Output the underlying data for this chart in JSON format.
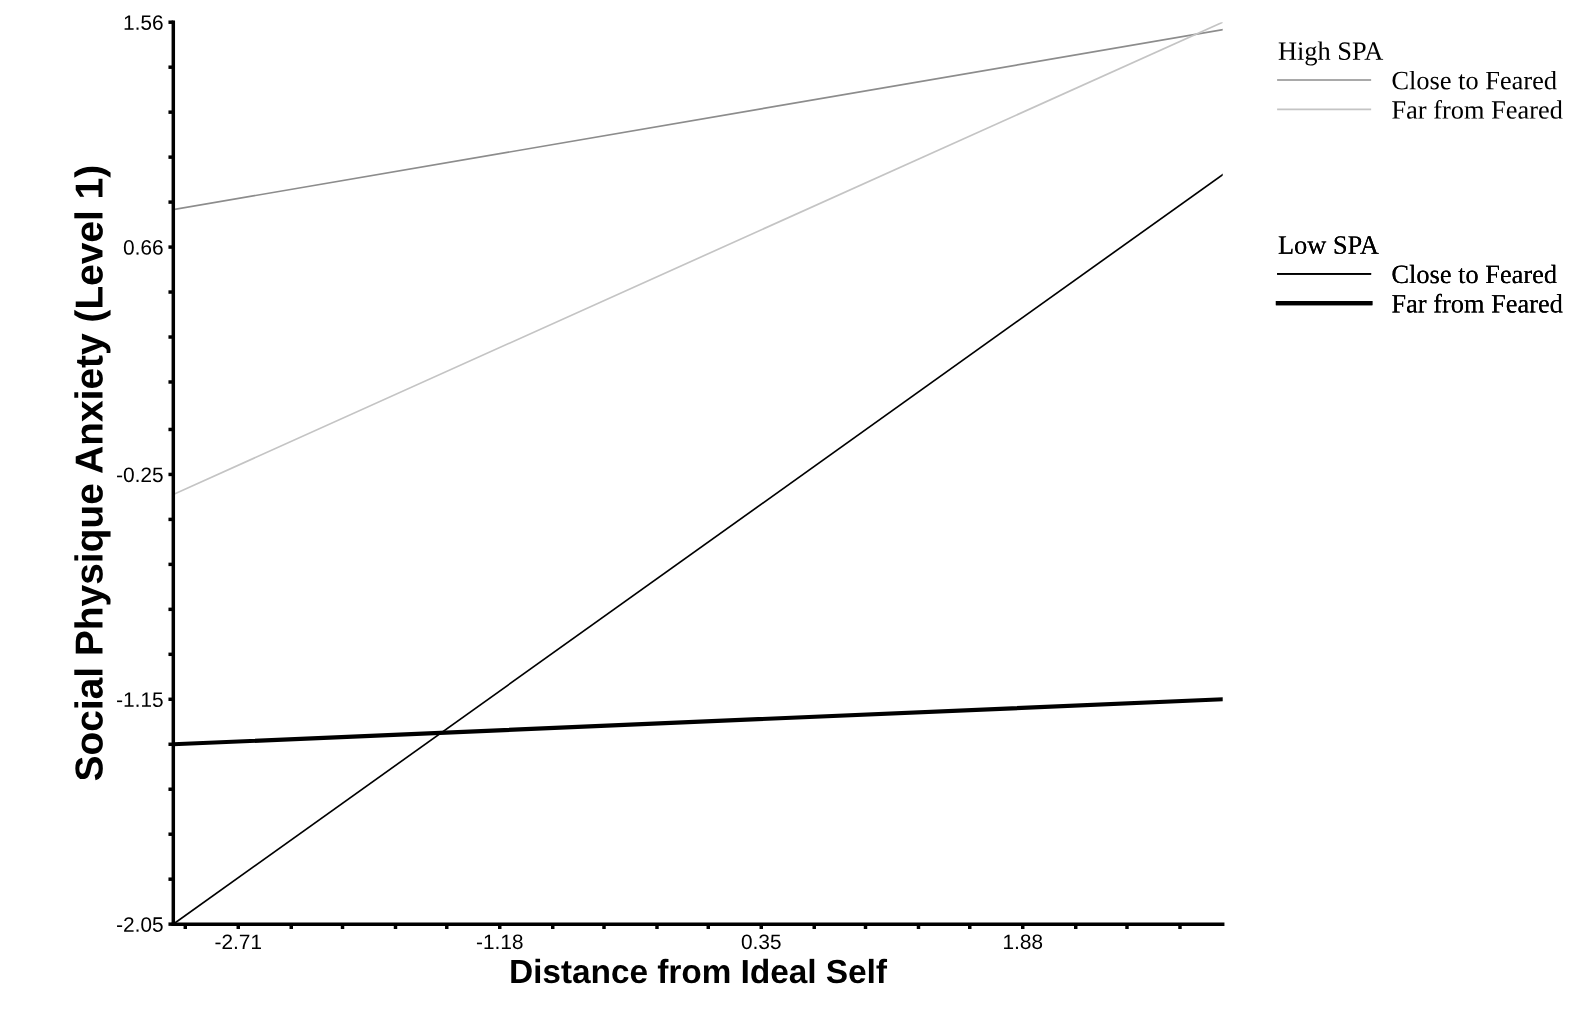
{
  "chart_data": {
    "type": "line",
    "xlabel": "Distance from Ideal Self",
    "ylabel": "Social Physique Anxiety (Level 1)",
    "x": [
      -3.09,
      3.05
    ],
    "series": [
      {
        "name": "Close to Feared",
        "color": "#8c8c8c",
        "values": [
          0.81,
          1.53
        ]
      },
      {
        "name": "Far from Feared",
        "color": "#c4c4c4",
        "values": [
          -0.33,
          1.56
        ]
      },
      {
        "name": "Close to Feared",
        "color": "#000000",
        "values": [
          -2.05,
          0.95
        ]
      },
      {
        "name": "Far from Feared",
        "color": "#000000",
        "values": [
          -1.33,
          -1.15
        ]
      }
    ],
    "annotations": [
      "High SPA",
      "Low SPA"
    ],
    "xlim": [
      -3.09,
      3.05
    ],
    "ylim": [
      -2.05,
      1.56
    ],
    "xticks": [
      {
        "value": -3.02,
        "label": null
      },
      -2.71,
      {
        "value": -2.4,
        "label": null
      },
      {
        "value": -2.1,
        "label": null
      },
      {
        "value": -1.79,
        "label": null
      },
      {
        "value": -1.49,
        "label": null
      },
      -1.18,
      {
        "value": -0.87,
        "label": null
      },
      {
        "value": -0.57,
        "label": null
      },
      {
        "value": -0.26,
        "label": null
      },
      {
        "value": 0.04,
        "label": null
      },
      0.35,
      {
        "value": 0.66,
        "label": null
      },
      {
        "value": 0.96,
        "label": null
      },
      {
        "value": 1.27,
        "label": null
      },
      {
        "value": 1.57,
        "label": null
      },
      1.88,
      {
        "value": 2.19,
        "label": null
      },
      {
        "value": 2.49,
        "label": null
      },
      {
        "value": 2.8,
        "label": null
      }
    ],
    "yticks": [
      -2.05,
      {
        "value": -1.87,
        "label": null
      },
      {
        "value": -1.69,
        "label": null
      },
      {
        "value": -1.51,
        "label": null
      },
      {
        "value": -1.33,
        "label": null
      },
      -1.15,
      {
        "value": -0.97,
        "label": null
      },
      {
        "value": -0.79,
        "label": null
      },
      {
        "value": -0.61,
        "label": null
      },
      {
        "value": -0.43,
        "label": null
      },
      -0.25,
      {
        "value": -0.07,
        "label": null
      },
      {
        "value": 0.12,
        "label": null
      },
      {
        "value": 0.3,
        "label": null
      },
      {
        "value": 0.48,
        "label": null
      },
      0.66,
      {
        "value": 0.84,
        "label": null
      },
      {
        "value": 1.02,
        "label": null
      },
      {
        "value": 1.2,
        "label": null
      },
      {
        "value": 1.38,
        "label": null
      },
      1.56
    ],
    "legend": "right",
    "grid": false,
    "line_style": "solid",
    "marker": "none"
  }
}
